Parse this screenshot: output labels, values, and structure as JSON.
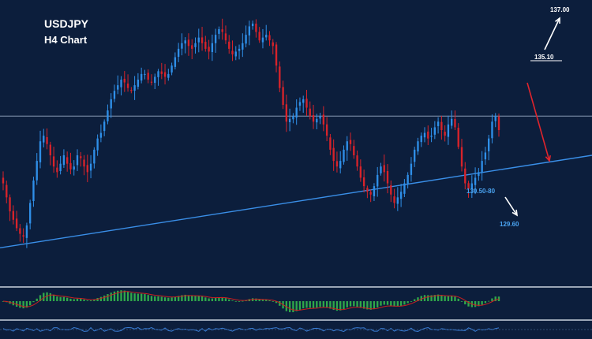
{
  "chart_data": {
    "type": "candlestick",
    "title": "USDJPY",
    "subtitle": "H4 Chart",
    "colors": {
      "background": "#0c1e3c",
      "bull": "#2f8fe8",
      "bear": "#d8232a",
      "trendline": "#3a8fe8",
      "horizontal_line": "#8a9bb5",
      "arrow_up": "#ffffff",
      "arrow_down_red": "#e0242c",
      "arrow_down_white": "#ffffff",
      "label_blue": "#4aa3f0",
      "histogram_green": "#2fa84a",
      "histogram_signal": "#cc2020",
      "oscillator_line": "#3a7fd8",
      "panel_separator": "#9aa5b5"
    },
    "price_scale": {
      "min": 129.0,
      "max": 138.0
    },
    "closes": [
      131.6,
      131.1,
      130.6,
      130.3,
      130.0,
      129.8,
      129.7,
      130.1,
      130.9,
      131.7,
      132.4,
      133.1,
      133.3,
      133.0,
      132.6,
      132.2,
      132.0,
      132.3,
      132.6,
      132.3,
      132.1,
      132.2,
      132.6,
      132.5,
      132.2,
      132.0,
      132.3,
      132.8,
      133.2,
      133.4,
      133.8,
      134.2,
      134.6,
      134.9,
      135.1,
      135.3,
      135.2,
      135.0,
      134.9,
      135.1,
      135.3,
      135.5,
      135.5,
      135.3,
      135.2,
      135.4,
      135.6,
      135.5,
      135.4,
      135.5,
      135.8,
      136.1,
      136.4,
      136.6,
      136.7,
      136.5,
      136.4,
      136.6,
      136.8,
      136.6,
      136.4,
      136.3,
      136.6,
      136.9,
      137.1,
      137.0,
      136.7,
      136.4,
      136.2,
      136.3,
      136.4,
      136.6,
      136.9,
      137.2,
      137.3,
      137.0,
      136.7,
      136.8,
      136.9,
      136.7,
      136.5,
      135.8,
      135.0,
      134.4,
      133.8,
      133.9,
      134.0,
      134.3,
      134.5,
      134.6,
      134.3,
      134.0,
      133.8,
      133.9,
      134.0,
      133.7,
      133.3,
      132.8,
      132.4,
      132.2,
      132.4,
      132.8,
      133.1,
      133.0,
      132.6,
      132.2,
      131.8,
      131.5,
      131.3,
      131.2,
      131.5,
      131.9,
      132.2,
      132.0,
      131.6,
      131.2,
      130.9,
      131.1,
      131.3,
      131.6,
      131.9,
      132.3,
      132.8,
      133.1,
      133.3,
      133.4,
      133.2,
      133.3,
      133.6,
      133.8,
      133.5,
      133.3,
      133.7,
      133.9,
      133.6,
      132.9,
      132.2,
      131.6,
      131.4,
      131.6,
      131.8,
      132.0,
      132.4,
      132.7,
      133.2,
      133.8,
      134.0,
      133.5
    ],
    "horizontal_line": {
      "price": 134.0
    },
    "trendline": {
      "start_price": 129.3,
      "end_price": 132.6
    },
    "annotations": [
      {
        "text": "137.00"
      },
      {
        "text": "135.10"
      },
      {
        "text": "130.50-80"
      },
      {
        "text": "129.60"
      }
    ]
  }
}
